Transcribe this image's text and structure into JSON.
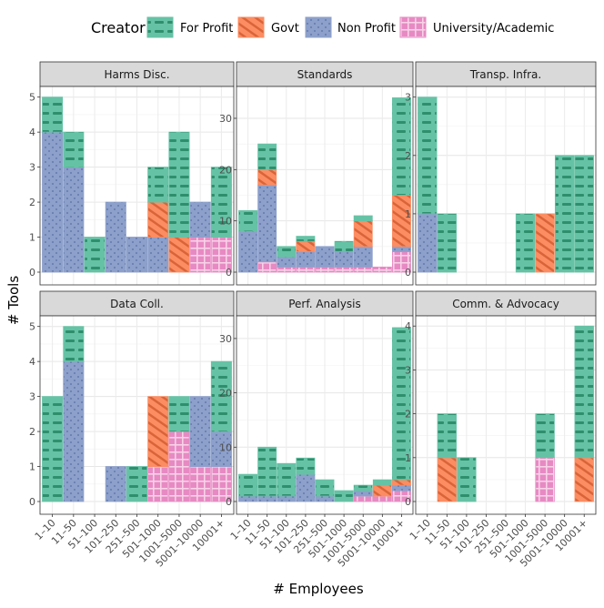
{
  "colors": {
    "For Profit": "#66c2a5",
    "Govt": "#fc8d62",
    "Non Profit": "#8da0cb",
    "University/Academic": "#e78ac3"
  },
  "chart_data": {
    "type": "bar",
    "layout": "stacked-faceted",
    "x_label": "# Employees",
    "y_label": "# Tools",
    "legend_title": "Creator",
    "legend_position": "top",
    "series_names": [
      "For Profit",
      "Govt",
      "Non Profit",
      "University/Academic"
    ],
    "categories": [
      "1–10",
      "11–50",
      "51–100",
      "101–250",
      "251–500",
      "501–1000",
      "1001–5000",
      "5001–10000",
      "10001+"
    ],
    "facets": [
      {
        "title": "Harms Disc.",
        "ylim": [
          0,
          5.2
        ],
        "ticks": [
          0,
          1,
          2,
          3,
          4,
          5
        ],
        "series": {
          "For Profit": [
            1,
            1,
            1,
            0,
            0,
            1,
            3,
            0,
            2
          ],
          "Govt": [
            0,
            0,
            0,
            0,
            0,
            1,
            1,
            0,
            0
          ],
          "Non Profit": [
            4,
            3,
            0,
            2,
            1,
            1,
            0,
            1,
            0
          ],
          "University/Academic": [
            0,
            0,
            0,
            0,
            0,
            0,
            0,
            1,
            1
          ]
        }
      },
      {
        "title": "Standards",
        "ylim": [
          0,
          35.5
        ],
        "ticks": [
          0,
          10,
          20,
          30
        ],
        "series": {
          "For Profit": [
            4,
            5,
            2,
            1,
            0,
            2,
            1,
            0,
            19
          ],
          "Govt": [
            0,
            3,
            0,
            2,
            0,
            0,
            5,
            0,
            10
          ],
          "Non Profit": [
            8,
            15,
            2,
            3,
            4,
            3,
            4,
            0,
            1
          ],
          "University/Academic": [
            0,
            2,
            1,
            1,
            1,
            1,
            1,
            1,
            4
          ]
        }
      },
      {
        "title": "Transp. Infra.",
        "ylim": [
          0,
          3.12
        ],
        "ticks": [
          0,
          1,
          2,
          3
        ],
        "series": {
          "For Profit": [
            2,
            1,
            0,
            0,
            0,
            1,
            0,
            2,
            2
          ],
          "Govt": [
            0,
            0,
            0,
            0,
            0,
            0,
            1,
            0,
            0
          ],
          "Non Profit": [
            1,
            0,
            0,
            0,
            0,
            0,
            0,
            0,
            0
          ],
          "University/Academic": [
            0,
            0,
            0,
            0,
            0,
            0,
            0,
            0,
            0
          ]
        }
      },
      {
        "title": "Data Coll.",
        "ylim": [
          0,
          5.2
        ],
        "ticks": [
          0,
          1,
          2,
          3,
          4,
          5
        ],
        "series": {
          "For Profit": [
            3,
            1,
            0,
            0,
            1,
            0,
            1,
            0,
            2
          ],
          "Govt": [
            0,
            0,
            0,
            0,
            0,
            2,
            0,
            0,
            0
          ],
          "Non Profit": [
            0,
            4,
            0,
            1,
            0,
            0,
            0,
            2,
            1
          ],
          "University/Academic": [
            0,
            0,
            0,
            0,
            0,
            1,
            2,
            1,
            1
          ]
        }
      },
      {
        "title": "Perf. Analysis",
        "ylim": [
          0,
          33.5
        ],
        "ticks": [
          0,
          10,
          20,
          30
        ],
        "series": {
          "For Profit": [
            4,
            9,
            6,
            3,
            3,
            2,
            1,
            1,
            28
          ],
          "Govt": [
            0,
            0,
            0,
            0,
            0,
            0,
            0,
            2,
            1
          ],
          "Non Profit": [
            1,
            1,
            1,
            5,
            1,
            0,
            1,
            0,
            1
          ],
          "University/Academic": [
            0,
            0,
            0,
            0,
            0,
            0,
            1,
            1,
            2
          ]
        }
      },
      {
        "title": "Comm. & Advocacy",
        "ylim": [
          0,
          4.15
        ],
        "ticks": [
          0,
          1,
          2,
          3,
          4
        ],
        "series": {
          "For Profit": [
            0,
            1,
            1,
            0,
            0,
            0,
            1,
            0,
            3
          ],
          "Govt": [
            0,
            1,
            0,
            0,
            0,
            0,
            0,
            0,
            1
          ],
          "Non Profit": [
            0,
            0,
            0,
            0,
            0,
            0,
            0,
            0,
            0
          ],
          "University/Academic": [
            0,
            0,
            0,
            0,
            0,
            0,
            1,
            0,
            0
          ]
        }
      }
    ]
  }
}
